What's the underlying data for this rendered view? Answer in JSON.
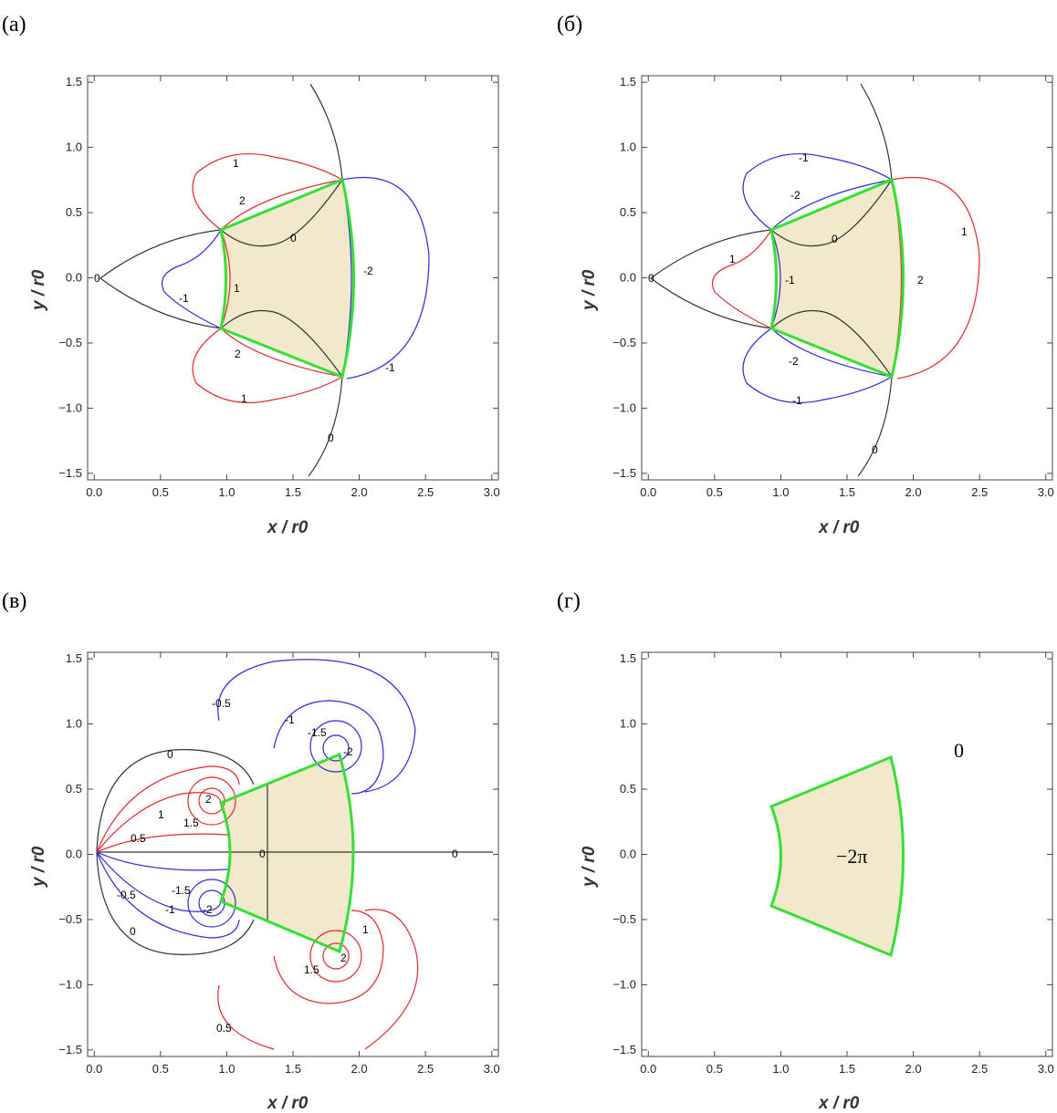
{
  "panels": [
    {
      "label": "(а)",
      "xlabel": "x / r0",
      "ylabel": "y / r0",
      "contour_labels": [
        "1",
        "2",
        "0",
        "-2",
        "1",
        "-1",
        "2",
        "-1",
        "1",
        "0",
        "0"
      ]
    },
    {
      "label": "(б)",
      "xlabel": "x / r0",
      "ylabel": "y / r0",
      "contour_labels": [
        "-1",
        "-2",
        "0",
        "1",
        "-1",
        "2",
        "1",
        "0",
        "-2",
        "-1",
        "0"
      ]
    },
    {
      "label": "(в)",
      "xlabel": "x / r0",
      "ylabel": "y / r0",
      "contour_labels": [
        "-0.5",
        "-1",
        "-1.5",
        "-2",
        "0",
        "2",
        "1.5",
        "1",
        "0.5",
        "0",
        "0",
        "-0.5",
        "-1.5",
        "-1",
        "-2",
        "0",
        "1",
        "1.5",
        "2",
        "0.5"
      ]
    },
    {
      "label": "(г)",
      "xlabel": "x / r0",
      "ylabel": "y / r0",
      "region_inside": "−2π",
      "region_outside": "0"
    }
  ],
  "chart_data": [
    {
      "type": "contour",
      "panel": "(а)",
      "xlim": [
        -0.05,
        3.05
      ],
      "ylim": [
        -1.55,
        1.55
      ],
      "xticks": [
        "0.0",
        "0.5",
        "1.0",
        "1.5",
        "2.0",
        "2.5",
        "3.0"
      ],
      "yticks": [
        "−1.5",
        "−1.0",
        "−0.5",
        "0.0",
        "0.5",
        "1.0",
        "1.5"
      ],
      "xlabel": "x / r0",
      "ylabel": "y / r0",
      "levels": [
        -2,
        -1,
        0,
        1,
        2
      ],
      "region_vertices": [
        [
          0.93,
          0.38
        ],
        [
          1.85,
          0.77
        ],
        [
          1.85,
          -0.77
        ],
        [
          0.93,
          -0.38
        ]
      ],
      "colors": {
        "positive": "#e8262b",
        "negative": "#2b2bd9",
        "zero": "#333333",
        "boundary": "#33e033",
        "fill": "#f2e8cc"
      }
    },
    {
      "type": "contour",
      "panel": "(б)",
      "xlim": [
        -0.05,
        3.05
      ],
      "ylim": [
        -1.55,
        1.55
      ],
      "xticks": [
        "0.0",
        "0.5",
        "1.0",
        "1.5",
        "2.0",
        "2.5",
        "3.0"
      ],
      "yticks": [
        "−1.5",
        "−1.0",
        "−0.5",
        "0.0",
        "0.5",
        "1.0",
        "1.5"
      ],
      "xlabel": "x / r0",
      "ylabel": "y / r0",
      "levels": [
        -2,
        -1,
        0,
        1,
        2
      ],
      "region_vertices": [
        [
          0.93,
          0.38
        ],
        [
          1.85,
          0.77
        ],
        [
          1.85,
          -0.77
        ],
        [
          0.93,
          -0.38
        ]
      ],
      "colors": {
        "positive": "#e8262b",
        "negative": "#2b2bd9",
        "zero": "#333333",
        "boundary": "#33e033",
        "fill": "#f2e8cc"
      }
    },
    {
      "type": "contour",
      "panel": "(в)",
      "xlim": [
        -0.05,
        3.05
      ],
      "ylim": [
        -1.55,
        1.55
      ],
      "xticks": [
        "0.0",
        "0.5",
        "1.0",
        "1.5",
        "2.0",
        "2.5",
        "3.0"
      ],
      "yticks": [
        "−1.5",
        "−1.0",
        "−0.5",
        "0.0",
        "0.5",
        "1.0",
        "1.5"
      ],
      "xlabel": "x / r0",
      "ylabel": "y / r0",
      "levels": [
        -2,
        -1.5,
        -1,
        -0.5,
        0,
        0.5,
        1,
        1.5,
        2
      ],
      "region_vertices": [
        [
          0.93,
          0.38
        ],
        [
          1.85,
          0.77
        ],
        [
          1.85,
          -0.77
        ],
        [
          0.93,
          -0.38
        ]
      ],
      "colors": {
        "positive": "#e8262b",
        "negative": "#2b2bd9",
        "zero": "#333333",
        "boundary": "#33e033",
        "fill": "#f2e8cc"
      }
    },
    {
      "type": "region",
      "panel": "(г)",
      "xlim": [
        -0.05,
        3.05
      ],
      "ylim": [
        -1.55,
        1.55
      ],
      "xticks": [
        "0.0",
        "0.5",
        "1.0",
        "1.5",
        "2.0",
        "2.5",
        "3.0"
      ],
      "yticks": [
        "−1.5",
        "−1.0",
        "−0.5",
        "0.0",
        "0.5",
        "1.0",
        "1.5"
      ],
      "xlabel": "x / r0",
      "ylabel": "y / r0",
      "region_vertices": [
        [
          0.93,
          0.38
        ],
        [
          1.85,
          0.77
        ],
        [
          1.85,
          -0.77
        ],
        [
          0.93,
          -0.38
        ]
      ],
      "region_values": {
        "inside": "−2π",
        "outside": "0"
      },
      "colors": {
        "boundary": "#33e033",
        "fill": "#f2e8cc"
      }
    }
  ]
}
